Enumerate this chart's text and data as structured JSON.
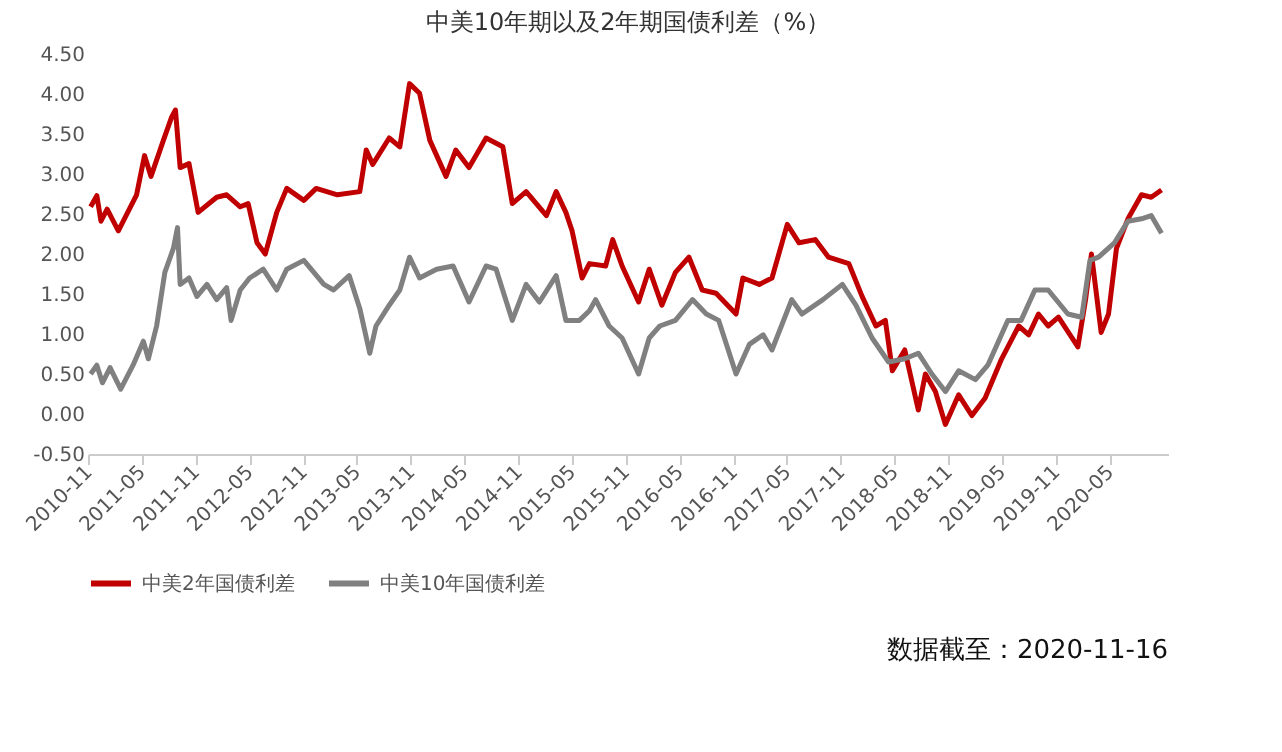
{
  "chart_data": {
    "type": "line",
    "title": "中美10年期以及2年期国债利差（%）",
    "annotations": [
      "数据截至：2020-11-16"
    ],
    "xlim": [
      "2010-11-01",
      "2020-11-16"
    ],
    "xticks": [
      "2010-11",
      "2011-05",
      "2011-11",
      "2012-05",
      "2012-11",
      "2013-05",
      "2013-11",
      "2014-05",
      "2014-11",
      "2015-05",
      "2015-11",
      "2016-05",
      "2016-11",
      "2017-05",
      "2017-11",
      "2018-05",
      "2018-11",
      "2019-05",
      "2019-11",
      "2020-05"
    ],
    "ylim": [
      -0.5,
      4.5
    ],
    "yticks": [
      {
        "value": -0.5,
        "label": "-0.50"
      },
      {
        "value": 0,
        "label": "0.00"
      },
      {
        "value": 0.5,
        "label": "0.50"
      },
      {
        "value": 1,
        "label": "1.00"
      },
      {
        "value": 1.5,
        "label": "1.50"
      },
      {
        "value": 2,
        "label": "2.00"
      },
      {
        "value": 2.5,
        "label": "2.50"
      },
      {
        "value": 3,
        "label": "3.00"
      },
      {
        "value": 3.5,
        "label": "3.50"
      },
      {
        "value": 4,
        "label": "4.00"
      },
      {
        "value": 4.5,
        "label": "4.50"
      }
    ],
    "grid": false,
    "legend": "bottom",
    "series": [
      {
        "name": "中美2年国债利差",
        "color": "#c00000",
        "x": [
          "2010-11-10",
          "2010-12-01",
          "2010-12-15",
          "2011-01-05",
          "2011-02-12",
          "2011-04-15",
          "2011-05-12",
          "2011-06-03",
          "2011-07-15",
          "2011-08-12",
          "2011-08-25",
          "2011-09-10",
          "2011-10-10",
          "2011-11-10",
          "2012-01-12",
          "2012-02-15",
          "2012-04-01",
          "2012-04-28",
          "2012-05-28",
          "2012-06-25",
          "2012-08-03",
          "2012-09-06",
          "2012-11-03",
          "2012-12-15",
          "2013-02-25",
          "2013-05-12",
          "2013-06-03",
          "2013-06-25",
          "2013-08-20",
          "2013-09-25",
          "2013-10-28",
          "2013-12-01",
          "2014-01-05",
          "2014-03-01",
          "2014-04-03",
          "2014-05-18",
          "2014-07-15",
          "2014-09-10",
          "2014-10-12",
          "2014-11-28",
          "2015-02-05",
          "2015-03-10",
          "2015-04-12",
          "2015-05-03",
          "2015-06-06",
          "2015-07-01",
          "2015-08-25",
          "2015-09-18",
          "2015-10-20",
          "2015-12-15",
          "2016-01-20",
          "2016-03-03",
          "2016-04-18",
          "2016-06-03",
          "2016-07-18",
          "2016-09-03",
          "2016-11-10",
          "2016-12-03",
          "2017-01-28",
          "2017-03-12",
          "2017-05-03",
          "2017-06-12",
          "2017-08-06",
          "2017-09-20",
          "2017-11-28",
          "2018-01-12",
          "2018-02-28",
          "2018-04-01",
          "2018-04-25",
          "2018-06-06",
          "2018-07-22",
          "2018-08-15",
          "2018-09-18",
          "2018-10-22",
          "2018-12-06",
          "2019-01-20",
          "2019-03-06",
          "2019-05-01",
          "2019-06-28",
          "2019-08-01",
          "2019-09-03",
          "2019-10-06",
          "2019-11-10",
          "2020-01-15",
          "2020-02-10",
          "2020-03-01",
          "2020-04-03",
          "2020-04-28",
          "2020-05-25",
          "2020-07-03",
          "2020-08-18",
          "2020-09-20",
          "2020-10-25"
        ],
        "values": [
          2.59,
          2.73,
          2.41,
          2.56,
          2.29,
          2.74,
          3.23,
          2.97,
          3.42,
          3.71,
          3.8,
          3.08,
          3.13,
          2.52,
          2.71,
          2.74,
          2.59,
          2.63,
          2.14,
          2.0,
          2.52,
          2.82,
          2.67,
          2.82,
          2.74,
          2.78,
          3.3,
          3.12,
          3.45,
          3.34,
          4.13,
          4.01,
          3.42,
          2.97,
          3.3,
          3.08,
          3.45,
          3.34,
          2.63,
          2.78,
          2.48,
          2.78,
          2.52,
          2.29,
          1.7,
          1.88,
          1.85,
          2.18,
          1.85,
          1.4,
          1.81,
          1.36,
          1.77,
          1.96,
          1.55,
          1.51,
          1.25,
          1.7,
          1.62,
          1.7,
          2.37,
          2.14,
          2.18,
          1.96,
          1.88,
          1.47,
          1.1,
          1.17,
          0.54,
          0.8,
          0.05,
          0.5,
          0.28,
          -0.13,
          0.24,
          -0.02,
          0.2,
          0.69,
          1.1,
          0.99,
          1.25,
          1.1,
          1.21,
          0.84,
          1.43,
          2.0,
          1.02,
          1.25,
          2.07,
          2.44,
          2.74,
          2.71,
          2.8
        ]
      },
      {
        "name": "中美10年国债利差",
        "color": "#808080",
        "x": [
          "2010-11-10",
          "2010-12-01",
          "2010-12-20",
          "2011-01-15",
          "2011-02-20",
          "2011-04-03",
          "2011-05-08",
          "2011-05-25",
          "2011-06-22",
          "2011-07-20",
          "2011-08-18",
          "2011-09-01",
          "2011-09-10",
          "2011-10-10",
          "2011-11-06",
          "2011-12-10",
          "2012-01-12",
          "2012-02-15",
          "2012-03-01",
          "2012-04-01",
          "2012-05-03",
          "2012-06-18",
          "2012-08-03",
          "2012-09-06",
          "2012-11-03",
          "2013-01-10",
          "2013-02-12",
          "2013-04-06",
          "2013-05-12",
          "2013-06-15",
          "2013-07-06",
          "2013-08-20",
          "2013-09-25",
          "2013-10-28",
          "2013-12-01",
          "2014-01-28",
          "2014-03-25",
          "2014-05-18",
          "2014-07-15",
          "2014-08-18",
          "2014-10-12",
          "2014-11-28",
          "2015-01-12",
          "2015-03-10",
          "2015-04-12",
          "2015-05-28",
          "2015-07-01",
          "2015-07-22",
          "2015-09-06",
          "2015-10-20",
          "2015-12-15",
          "2016-01-20",
          "2016-02-25",
          "2016-04-18",
          "2016-06-15",
          "2016-08-01",
          "2016-09-12",
          "2016-11-10",
          "2016-12-25",
          "2017-02-10",
          "2017-03-12",
          "2017-05-18",
          "2017-06-22",
          "2017-09-01",
          "2017-11-06",
          "2017-12-22",
          "2018-02-15",
          "2018-04-12",
          "2018-06-06",
          "2018-07-22",
          "2018-09-06",
          "2018-10-22",
          "2018-12-06",
          "2019-02-01",
          "2019-03-15",
          "2019-05-22",
          "2019-07-06",
          "2019-08-22",
          "2019-10-06",
          "2019-12-12",
          "2020-01-28",
          "2020-02-25",
          "2020-03-25",
          "2020-05-18",
          "2020-07-03",
          "2020-08-18",
          "2020-09-20",
          "2020-10-25"
        ],
        "values": [
          0.5,
          0.61,
          0.39,
          0.58,
          0.31,
          0.61,
          0.91,
          0.69,
          1.1,
          1.77,
          2.07,
          2.33,
          1.62,
          1.7,
          1.47,
          1.62,
          1.43,
          1.58,
          1.17,
          1.55,
          1.7,
          1.81,
          1.55,
          1.81,
          1.92,
          1.62,
          1.55,
          1.73,
          1.32,
          0.76,
          1.1,
          1.36,
          1.55,
          1.96,
          1.7,
          1.81,
          1.85,
          1.4,
          1.85,
          1.81,
          1.17,
          1.62,
          1.4,
          1.73,
          1.17,
          1.17,
          1.29,
          1.43,
          1.1,
          0.95,
          0.5,
          0.95,
          1.1,
          1.17,
          1.43,
          1.25,
          1.17,
          0.5,
          0.87,
          0.99,
          0.8,
          1.43,
          1.25,
          1.43,
          1.62,
          1.36,
          0.95,
          0.65,
          0.69,
          0.76,
          0.5,
          0.28,
          0.54,
          0.43,
          0.61,
          1.17,
          1.17,
          1.55,
          1.55,
          1.25,
          1.21,
          1.92,
          1.96,
          2.14,
          2.41,
          2.44,
          2.48,
          2.26
        ]
      }
    ]
  }
}
